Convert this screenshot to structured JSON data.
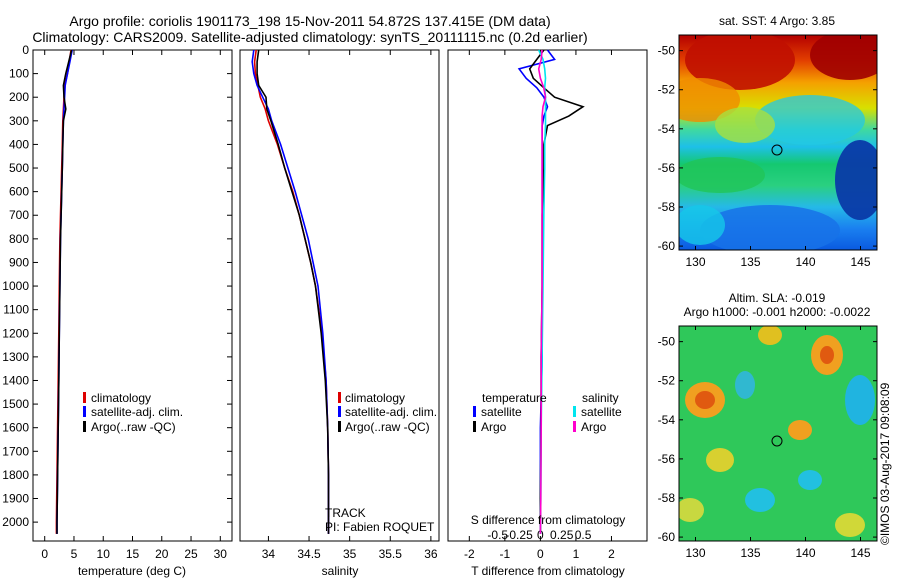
{
  "figure": {
    "title_line1": "Argo profile: coriolis 1901173_198 15-Nov-2011 54.872S 137.415E (DM data)",
    "title_line2": "Climatology: CARS2009. Satellite-adjusted climatology: synTS_20111115.nc (0.2d earlier)",
    "credit": "©IMOS 03-Aug-2017 09:08:09"
  },
  "colors": {
    "climatology": "#dd0000",
    "satellite": "#0000ff",
    "argo": "#000000",
    "sal_satellite": "#00e5ee",
    "sal_argo": "#ff00cc"
  },
  "chart_data": [
    {
      "id": "temperature",
      "type": "line",
      "xlabel": "temperature (deg C)",
      "ylabel": "",
      "xlim": [
        -2,
        32
      ],
      "ylim": [
        2080,
        0
      ],
      "xticks": [
        0,
        5,
        10,
        15,
        20,
        25,
        30
      ],
      "yticks": [
        0,
        100,
        200,
        300,
        400,
        500,
        600,
        700,
        800,
        900,
        1000,
        1100,
        1200,
        1300,
        1400,
        1500,
        1600,
        1700,
        1800,
        1900,
        2000
      ],
      "legend": [
        "climatology",
        "satellite-adj. clim.",
        "Argo(..raw -QC)"
      ],
      "legend_pos": "lower-right",
      "depth": [
        0,
        50,
        100,
        150,
        200,
        250,
        300,
        400,
        500,
        600,
        700,
        800,
        1000,
        1200,
        1400,
        1600,
        1800,
        2000,
        2050
      ],
      "series": [
        {
          "name": "climatology",
          "values": [
            4.5,
            4.2,
            3.9,
            3.4,
            3.3,
            3.2,
            3.1,
            3.0,
            2.9,
            2.8,
            2.7,
            2.6,
            2.5,
            2.4,
            2.3,
            2.2,
            2.1,
            2.0,
            2.0
          ]
        },
        {
          "name": "satellite-adj. clim.",
          "values": [
            4.7,
            4.3,
            3.9,
            3.5,
            3.4,
            3.3,
            3.2,
            3.1,
            3.0,
            2.9,
            2.8,
            2.7,
            2.6,
            2.5,
            2.4,
            2.3,
            2.2,
            2.1,
            2.1
          ]
        },
        {
          "name": "Argo(..raw -QC)",
          "values": [
            4.6,
            4.1,
            3.6,
            3.2,
            3.3,
            3.6,
            3.2,
            3.1,
            3.0,
            2.9,
            2.8,
            2.7,
            2.6,
            2.5,
            2.4,
            2.3,
            2.2,
            2.1,
            2.1
          ]
        }
      ]
    },
    {
      "id": "salinity",
      "type": "line",
      "xlabel": "salinity",
      "ylabel": "",
      "xlim": [
        33.65,
        36.1
      ],
      "ylim": [
        2080,
        0
      ],
      "xticks": [
        34,
        34.5,
        35,
        35.5,
        36
      ],
      "legend": [
        "climatology",
        "satellite-adj. clim.",
        "Argo(..raw -QC)"
      ],
      "legend_pos": "lower-right",
      "annotation": [
        "TRACK",
        "PI: Fabien ROQUET"
      ],
      "depth": [
        0,
        50,
        100,
        150,
        200,
        250,
        300,
        400,
        500,
        600,
        700,
        800,
        900,
        1000,
        1200,
        1400,
        1600,
        1800,
        2000,
        2050
      ],
      "series": [
        {
          "name": "climatology",
          "values": [
            33.85,
            33.83,
            33.84,
            33.87,
            33.9,
            33.96,
            34.0,
            34.11,
            34.2,
            34.3,
            34.38,
            34.45,
            34.52,
            34.58,
            34.66,
            34.71,
            34.73,
            34.74,
            34.74,
            34.74
          ]
        },
        {
          "name": "satellite-adj. clim.",
          "values": [
            33.82,
            33.8,
            33.82,
            33.86,
            33.93,
            34.0,
            34.04,
            34.15,
            34.24,
            34.33,
            34.41,
            34.49,
            34.55,
            34.61,
            34.67,
            34.71,
            34.73,
            34.74,
            34.74,
            34.74
          ]
        },
        {
          "name": "Argo(..raw -QC)",
          "values": [
            33.88,
            33.86,
            33.86,
            33.88,
            33.97,
            33.98,
            34.03,
            34.12,
            34.2,
            34.29,
            34.38,
            34.45,
            34.52,
            34.58,
            34.65,
            34.7,
            34.73,
            34.74,
            34.74,
            34.74
          ]
        }
      ]
    },
    {
      "id": "difference",
      "type": "line",
      "xlabel": "T difference from climatology",
      "top_axis_label": "S difference from climatology",
      "xlim": [
        -2.6,
        3.0
      ],
      "ylim": [
        2080,
        0
      ],
      "xticks": [
        -2,
        -1,
        0,
        1,
        2
      ],
      "top_ticks": [
        -0.5,
        -0.25,
        0,
        0.25,
        0.5
      ],
      "legend_headers": [
        "temperature",
        "salinity"
      ],
      "legend": [
        "satellite",
        "Argo",
        "satellite",
        "Argo"
      ],
      "legend_pos": "lower-center",
      "depth": [
        0,
        40,
        80,
        120,
        160,
        200,
        240,
        280,
        320,
        400,
        500,
        700,
        1000,
        1300,
        1600,
        1900,
        2050
      ],
      "series": [
        {
          "name": "T satellite",
          "unit": "deg C",
          "values": [
            0.2,
            0.4,
            -0.6,
            -0.4,
            -0.1,
            0.1,
            0.2,
            0.1,
            0.05,
            0.05,
            0.05,
            0.05,
            0.05,
            0.05,
            0.0,
            0.0,
            0.0
          ]
        },
        {
          "name": "T Argo",
          "unit": "deg C",
          "values": [
            0.1,
            -0.1,
            -0.3,
            -0.2,
            0.1,
            0.4,
            1.2,
            0.8,
            0.2,
            0.1,
            0.1,
            0.05,
            0.05,
            0.02,
            0.02,
            0.0,
            0.0
          ]
        },
        {
          "name": "S satellite",
          "unit": "psu",
          "values": [
            -0.02,
            0.03,
            0.05,
            0.06,
            0.05,
            0.06,
            0.06,
            0.06,
            0.06,
            0.05,
            0.05,
            0.04,
            0.03,
            0.02,
            0.01,
            0.005,
            0.0
          ]
        },
        {
          "name": "S Argo",
          "unit": "psu",
          "values": [
            0.02,
            0.01,
            -0.02,
            0.0,
            0.04,
            0.06,
            0.03,
            0.02,
            0.02,
            0.02,
            0.02,
            0.02,
            0.02,
            0.01,
            0.01,
            0.005,
            0.0
          ]
        }
      ]
    },
    {
      "id": "sst-map",
      "type": "heatmap",
      "title": "sat. SST: 4 Argo: 3.85",
      "xlim": [
        128.5,
        146.5
      ],
      "ylim": [
        -60.2,
        -49.2
      ],
      "xticks": [
        130,
        135,
        140,
        145
      ],
      "yticks": [
        -50,
        -52,
        -54,
        -56,
        -58,
        -60
      ],
      "marker": {
        "lon": 137.415,
        "lat": -54.872
      }
    },
    {
      "id": "sla-map",
      "type": "heatmap",
      "title_line1": "Altim. SLA: -0.019",
      "title_line2": "Argo h1000: -0.001 h2000: -0.0022",
      "xlim": [
        128.5,
        146.5
      ],
      "ylim": [
        -60.2,
        -49.2
      ],
      "xticks": [
        130,
        135,
        140,
        145
      ],
      "yticks": [
        -50,
        -52,
        -54,
        -56,
        -58,
        -60
      ],
      "marker": {
        "lon": 137.415,
        "lat": -54.872
      }
    }
  ]
}
